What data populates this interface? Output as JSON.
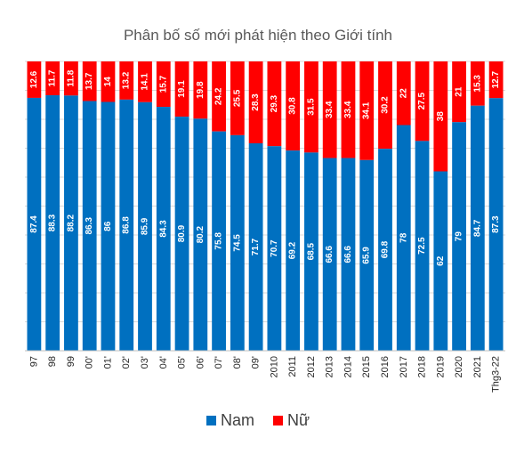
{
  "chart_data": {
    "type": "bar",
    "stacked": "100%",
    "title": "Phân bố số mới phát hiện theo Giới tính",
    "categories": [
      "97",
      "98",
      "99",
      "00'",
      "01'",
      "02'",
      "03'",
      "04'",
      "05'",
      "06'",
      "07'",
      "08'",
      "09'",
      "2010",
      "2011",
      "2012",
      "2013",
      "2014",
      "2015",
      "2016",
      "2017",
      "2018",
      "2019",
      "2020",
      "2021",
      "Thg3-22"
    ],
    "series": [
      {
        "name": "Nam",
        "color": "#0070C0",
        "values": [
          87.4,
          88.3,
          88.2,
          86.3,
          86,
          86.8,
          85.9,
          84.3,
          80.9,
          80.2,
          75.8,
          74.5,
          71.7,
          70.7,
          69.2,
          68.5,
          66.6,
          66.6,
          65.9,
          69.8,
          78,
          72.5,
          62,
          79,
          84.7,
          87.3
        ]
      },
      {
        "name": "Nữ",
        "color": "#FF0000",
        "values": [
          12.6,
          11.7,
          11.8,
          13.7,
          14,
          13.2,
          14.1,
          15.7,
          19.1,
          19.8,
          24.2,
          25.5,
          28.3,
          29.3,
          30.8,
          31.5,
          33.4,
          33.4,
          34.1,
          30.2,
          22,
          27.5,
          38,
          21,
          15.3,
          12.7
        ]
      }
    ],
    "ylim": [
      0,
      100
    ],
    "grid": true,
    "legend_position": "bottom",
    "xlabel": "",
    "ylabel": ""
  }
}
